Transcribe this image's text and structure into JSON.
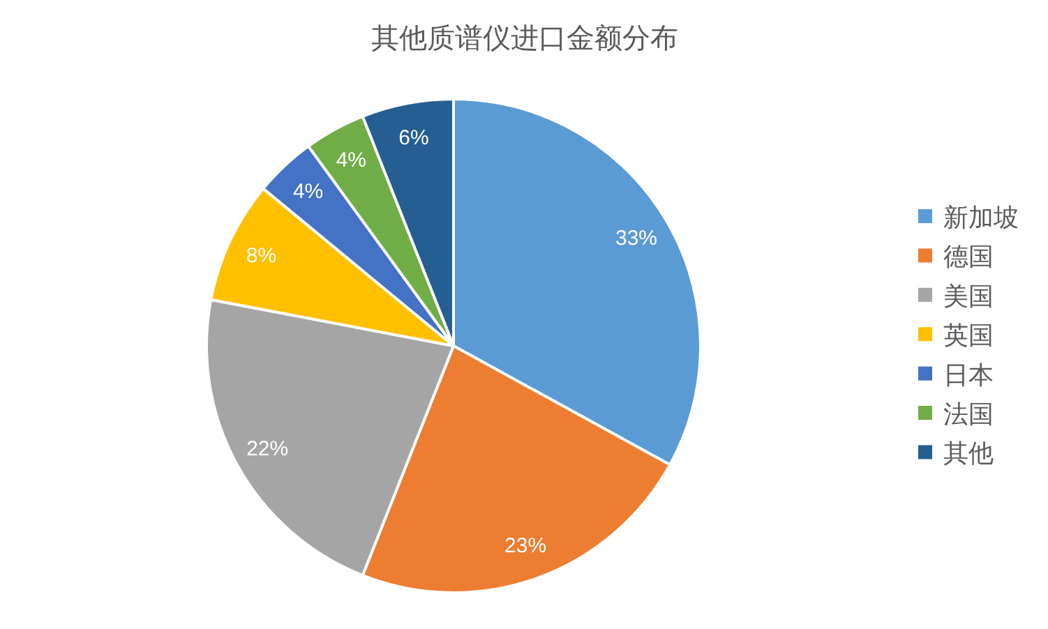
{
  "chart_data": {
    "type": "pie",
    "title": "其他质谱仪进口金额分布",
    "categories": [
      "新加坡",
      "德国",
      "美国",
      "英国",
      "日本",
      "法国",
      "其他"
    ],
    "values": [
      33,
      23,
      22,
      8,
      4,
      4,
      6
    ],
    "colors": [
      "#5b9bd5",
      "#ed7d31",
      "#a5a5a5",
      "#ffc000",
      "#4472c4",
      "#70ad47",
      "#255e91"
    ],
    "value_labels": [
      "33%",
      "23%",
      "22%",
      "8%",
      "4%",
      "4%",
      "6%"
    ],
    "legend": "right"
  }
}
